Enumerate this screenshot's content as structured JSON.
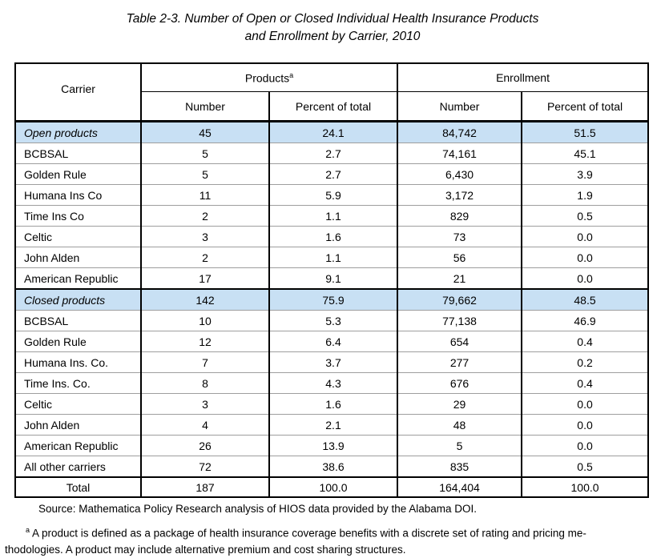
{
  "title": {
    "line1": "Table 2-3. Number of Open or Closed Individual Health Insurance Products",
    "line2": "and Enrollment by Carrier, 2010"
  },
  "table": {
    "header": {
      "carrier": "Carrier",
      "products": "Products",
      "products_sup": "a",
      "enrollment": "Enrollment",
      "number": "Number",
      "percent": "Percent of total"
    },
    "rows": [
      {
        "type": "section",
        "carrier": "Open products",
        "cells": [
          "45",
          "24.1",
          "84,742",
          "51.5"
        ]
      },
      {
        "type": "data",
        "carrier": "BCBSAL",
        "cells": [
          "5",
          "2.7",
          "74,161",
          "45.1"
        ]
      },
      {
        "type": "data",
        "carrier": "Golden Rule",
        "cells": [
          "5",
          "2.7",
          "6,430",
          "3.9"
        ]
      },
      {
        "type": "data",
        "carrier": "Humana Ins Co",
        "cells": [
          "11",
          "5.9",
          "3,172",
          "1.9"
        ]
      },
      {
        "type": "data",
        "carrier": "Time Ins Co",
        "cells": [
          "2",
          "1.1",
          "829",
          "0.5"
        ]
      },
      {
        "type": "data",
        "carrier": "Celtic",
        "cells": [
          "3",
          "1.6",
          "73",
          "0.0"
        ]
      },
      {
        "type": "data",
        "carrier": "John Alden",
        "cells": [
          "2",
          "1.1",
          "56",
          "0.0"
        ]
      },
      {
        "type": "data",
        "carrier": "American Republic",
        "cells": [
          "17",
          "9.1",
          "21",
          "0.0"
        ]
      },
      {
        "type": "section",
        "carrier": "Closed products",
        "cells": [
          "142",
          "75.9",
          "79,662",
          "48.5"
        ]
      },
      {
        "type": "data",
        "carrier": "BCBSAL",
        "cells": [
          "10",
          "5.3",
          "77,138",
          "46.9"
        ]
      },
      {
        "type": "data",
        "carrier": "Golden Rule",
        "cells": [
          "12",
          "6.4",
          "654",
          "0.4"
        ]
      },
      {
        "type": "data",
        "carrier": "Humana Ins. Co.",
        "cells": [
          "7",
          "3.7",
          "277",
          "0.2"
        ]
      },
      {
        "type": "data",
        "carrier": "Time Ins. Co.",
        "cells": [
          "8",
          "4.3",
          "676",
          "0.4"
        ]
      },
      {
        "type": "data",
        "carrier": "Celtic",
        "cells": [
          "3",
          "1.6",
          "29",
          "0.0"
        ]
      },
      {
        "type": "data",
        "carrier": "John Alden",
        "cells": [
          "4",
          "2.1",
          "48",
          "0.0"
        ]
      },
      {
        "type": "data",
        "carrier": "American Republic",
        "cells": [
          "26",
          "13.9",
          "5",
          "0.0"
        ]
      },
      {
        "type": "data",
        "carrier": "All other carriers",
        "cells": [
          "72",
          "38.6",
          "835",
          "0.5"
        ]
      },
      {
        "type": "total",
        "carrier": "Total",
        "cells": [
          "187",
          "100.0",
          "164,404",
          "100.0"
        ]
      }
    ]
  },
  "source": "Source: Mathematica Policy Research analysis of HIOS data provided by the Alabama DOI.",
  "footnote": {
    "sup": "a",
    "line1": " A product is defined as a package of health insurance coverage benefits with a discrete set of rating and pricing me-",
    "line2": "thodologies. A product may include alternative premium and cost sharing structures."
  },
  "colors": {
    "section_highlight": "#c8e0f4",
    "border_black": "#000000",
    "row_separator_gray": "#9e9e9e"
  }
}
